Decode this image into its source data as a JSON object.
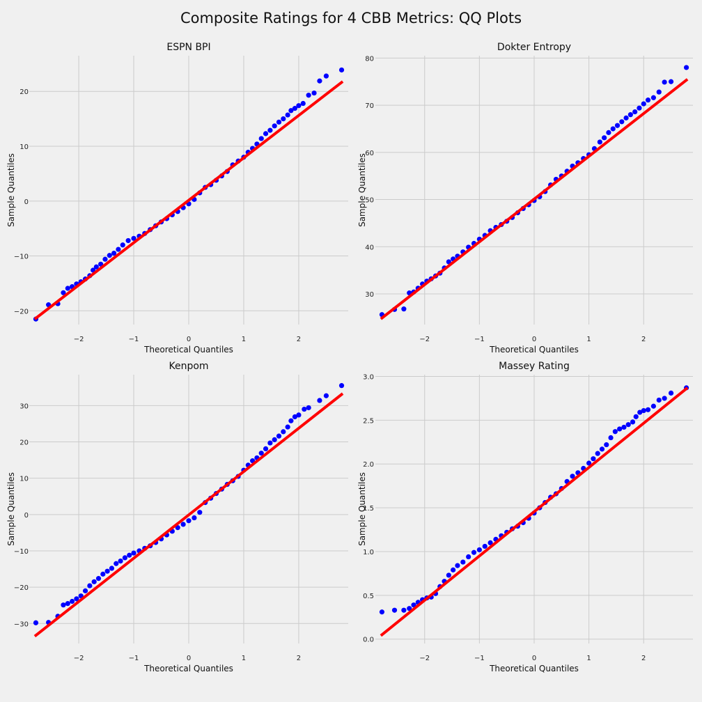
{
  "figure": {
    "title": "Composite Ratings for 4 CBB Metrics: QQ Plots"
  },
  "colors": {
    "background": "#f0f0f0",
    "grid": "#cbcbcb",
    "points": "#0000ff",
    "line": "#ff0000",
    "text": "#222222"
  },
  "chart_data": [
    {
      "type": "scatter",
      "title": "ESPN BPI",
      "xlabel": "Theoretical Quantiles",
      "ylabel": "Sample Quantiles",
      "xlim": [
        -2.9,
        2.9
      ],
      "ylim": [
        -22.5,
        26.5
      ],
      "xticks": [
        -2,
        -1,
        0,
        1,
        2
      ],
      "xtick_labels": [
        "−2",
        "−1",
        "0",
        "1",
        "2"
      ],
      "yticks": [
        -20,
        -10,
        0,
        10,
        20
      ],
      "ytick_labels": [
        "−20",
        "−10",
        "0",
        "10",
        "20"
      ],
      "grid": true,
      "reference_line": {
        "x": [
          -2.8,
          2.8
        ],
        "y": [
          -21.5,
          21.8
        ]
      },
      "points": [
        [
          -2.78,
          -21.5
        ],
        [
          -2.55,
          -18.9
        ],
        [
          -2.38,
          -18.7
        ],
        [
          -2.28,
          -16.7
        ],
        [
          -2.2,
          -15.9
        ],
        [
          -2.12,
          -15.6
        ],
        [
          -2.04,
          -15.1
        ],
        [
          -1.96,
          -14.7
        ],
        [
          -1.88,
          -14.2
        ],
        [
          -1.8,
          -13.6
        ],
        [
          -1.74,
          -12.6
        ],
        [
          -1.68,
          -12.0
        ],
        [
          -1.6,
          -11.5
        ],
        [
          -1.52,
          -10.6
        ],
        [
          -1.44,
          -9.9
        ],
        [
          -1.36,
          -9.5
        ],
        [
          -1.28,
          -8.8
        ],
        [
          -1.2,
          -8.0
        ],
        [
          -1.1,
          -7.2
        ],
        [
          -1.0,
          -6.8
        ],
        [
          -0.9,
          -6.4
        ],
        [
          -0.8,
          -5.9
        ],
        [
          -0.7,
          -5.2
        ],
        [
          -0.6,
          -4.5
        ],
        [
          -0.5,
          -3.8
        ],
        [
          -0.4,
          -3.2
        ],
        [
          -0.3,
          -2.5
        ],
        [
          -0.2,
          -1.9
        ],
        [
          -0.1,
          -1.2
        ],
        [
          0.0,
          -0.5
        ],
        [
          0.1,
          0.3
        ],
        [
          0.2,
          1.5
        ],
        [
          0.3,
          2.5
        ],
        [
          0.4,
          3.0
        ],
        [
          0.5,
          3.8
        ],
        [
          0.6,
          4.6
        ],
        [
          0.7,
          5.4
        ],
        [
          0.8,
          6.6
        ],
        [
          0.9,
          7.3
        ],
        [
          1.0,
          8.0
        ],
        [
          1.08,
          8.9
        ],
        [
          1.16,
          9.6
        ],
        [
          1.24,
          10.4
        ],
        [
          1.32,
          11.4
        ],
        [
          1.4,
          12.3
        ],
        [
          1.48,
          12.9
        ],
        [
          1.56,
          13.7
        ],
        [
          1.64,
          14.4
        ],
        [
          1.72,
          15.0
        ],
        [
          1.8,
          15.7
        ],
        [
          1.86,
          16.5
        ],
        [
          1.93,
          16.9
        ],
        [
          2.0,
          17.4
        ],
        [
          2.08,
          17.8
        ],
        [
          2.18,
          19.3
        ],
        [
          2.28,
          19.7
        ],
        [
          2.38,
          21.9
        ],
        [
          2.5,
          22.8
        ],
        [
          2.78,
          23.9
        ]
      ]
    },
    {
      "type": "scatter",
      "title": "Dokter Entropy",
      "xlabel": "Theoretical Quantiles",
      "ylabel": "Sample Quantiles",
      "xlim": [
        -2.9,
        2.9
      ],
      "ylim": [
        23.5,
        80.5
      ],
      "xticks": [
        -2,
        -1,
        0,
        1,
        2
      ],
      "xtick_labels": [
        "−2",
        "−1",
        "0",
        "1",
        "2"
      ],
      "yticks": [
        30,
        40,
        50,
        60,
        70,
        80
      ],
      "ytick_labels": [
        "30",
        "40",
        "50",
        "60",
        "70",
        "80"
      ],
      "grid": true,
      "reference_line": {
        "x": [
          -2.8,
          2.8
        ],
        "y": [
          24.7,
          75.5
        ]
      },
      "points": [
        [
          -2.78,
          25.6
        ],
        [
          -2.55,
          26.7
        ],
        [
          -2.38,
          26.8
        ],
        [
          -2.28,
          30.2
        ],
        [
          -2.2,
          30.4
        ],
        [
          -2.12,
          31.2
        ],
        [
          -2.04,
          32.1
        ],
        [
          -1.96,
          32.7
        ],
        [
          -1.88,
          33.2
        ],
        [
          -1.8,
          33.8
        ],
        [
          -1.72,
          34.4
        ],
        [
          -1.64,
          35.5
        ],
        [
          -1.56,
          36.8
        ],
        [
          -1.48,
          37.4
        ],
        [
          -1.4,
          38.0
        ],
        [
          -1.3,
          38.9
        ],
        [
          -1.2,
          39.9
        ],
        [
          -1.1,
          40.7
        ],
        [
          -1.0,
          41.6
        ],
        [
          -0.9,
          42.4
        ],
        [
          -0.8,
          43.4
        ],
        [
          -0.7,
          44.1
        ],
        [
          -0.6,
          44.7
        ],
        [
          -0.5,
          45.4
        ],
        [
          -0.4,
          46.2
        ],
        [
          -0.3,
          47.2
        ],
        [
          -0.2,
          48.1
        ],
        [
          -0.1,
          48.9
        ],
        [
          0.0,
          49.8
        ],
        [
          0.1,
          50.6
        ],
        [
          0.2,
          51.7
        ],
        [
          0.3,
          53.1
        ],
        [
          0.4,
          54.3
        ],
        [
          0.5,
          55.0
        ],
        [
          0.6,
          56.0
        ],
        [
          0.7,
          57.1
        ],
        [
          0.8,
          57.8
        ],
        [
          0.9,
          58.7
        ],
        [
          1.0,
          59.5
        ],
        [
          1.1,
          60.8
        ],
        [
          1.2,
          62.2
        ],
        [
          1.28,
          63.1
        ],
        [
          1.36,
          64.2
        ],
        [
          1.44,
          65.0
        ],
        [
          1.52,
          65.7
        ],
        [
          1.6,
          66.5
        ],
        [
          1.68,
          67.3
        ],
        [
          1.76,
          68.0
        ],
        [
          1.84,
          68.6
        ],
        [
          1.92,
          69.4
        ],
        [
          2.0,
          70.3
        ],
        [
          2.08,
          71.1
        ],
        [
          2.18,
          71.6
        ],
        [
          2.28,
          72.8
        ],
        [
          2.38,
          74.9
        ],
        [
          2.5,
          75.0
        ],
        [
          2.78,
          78.0
        ]
      ]
    },
    {
      "type": "scatter",
      "title": "Kenpom",
      "xlabel": "Theoretical Quantiles",
      "ylabel": "Sample Quantiles",
      "xlim": [
        -2.9,
        2.9
      ],
      "ylim": [
        -35.5,
        38.5
      ],
      "xticks": [
        -2,
        -1,
        0,
        1,
        2
      ],
      "xtick_labels": [
        "−2",
        "−1",
        "0",
        "1",
        "2"
      ],
      "yticks": [
        -30,
        -20,
        -10,
        0,
        10,
        20,
        30
      ],
      "ytick_labels": [
        "−30",
        "−20",
        "−10",
        "0",
        "10",
        "20",
        "30"
      ],
      "grid": true,
      "reference_line": {
        "x": [
          -2.8,
          2.8
        ],
        "y": [
          -33.5,
          33.3
        ]
      },
      "points": [
        [
          -2.78,
          -29.8
        ],
        [
          -2.55,
          -29.7
        ],
        [
          -2.38,
          -28.0
        ],
        [
          -2.28,
          -24.9
        ],
        [
          -2.2,
          -24.5
        ],
        [
          -2.12,
          -23.9
        ],
        [
          -2.04,
          -23.2
        ],
        [
          -1.96,
          -22.4
        ],
        [
          -1.88,
          -21.0
        ],
        [
          -1.8,
          -19.6
        ],
        [
          -1.72,
          -18.5
        ],
        [
          -1.64,
          -17.6
        ],
        [
          -1.56,
          -16.4
        ],
        [
          -1.48,
          -15.6
        ],
        [
          -1.4,
          -14.8
        ],
        [
          -1.32,
          -13.5
        ],
        [
          -1.24,
          -12.8
        ],
        [
          -1.16,
          -11.9
        ],
        [
          -1.08,
          -11.2
        ],
        [
          -1.0,
          -10.6
        ],
        [
          -0.9,
          -10.0
        ],
        [
          -0.8,
          -9.3
        ],
        [
          -0.7,
          -8.6
        ],
        [
          -0.6,
          -7.7
        ],
        [
          -0.5,
          -6.7
        ],
        [
          -0.4,
          -5.6
        ],
        [
          -0.3,
          -4.6
        ],
        [
          -0.2,
          -3.6
        ],
        [
          -0.1,
          -2.7
        ],
        [
          0.0,
          -1.7
        ],
        [
          0.1,
          -0.9
        ],
        [
          0.2,
          0.6
        ],
        [
          0.3,
          3.3
        ],
        [
          0.4,
          4.5
        ],
        [
          0.5,
          5.8
        ],
        [
          0.6,
          7.0
        ],
        [
          0.7,
          8.3
        ],
        [
          0.8,
          9.3
        ],
        [
          0.9,
          10.5
        ],
        [
          1.0,
          12.2
        ],
        [
          1.08,
          13.6
        ],
        [
          1.16,
          14.8
        ],
        [
          1.24,
          15.6
        ],
        [
          1.32,
          16.9
        ],
        [
          1.4,
          18.1
        ],
        [
          1.48,
          19.7
        ],
        [
          1.56,
          20.6
        ],
        [
          1.64,
          21.6
        ],
        [
          1.72,
          22.8
        ],
        [
          1.8,
          24.1
        ],
        [
          1.86,
          25.8
        ],
        [
          1.93,
          26.9
        ],
        [
          2.0,
          27.4
        ],
        [
          2.1,
          29.0
        ],
        [
          2.18,
          29.4
        ],
        [
          2.38,
          31.4
        ],
        [
          2.5,
          32.7
        ],
        [
          2.78,
          35.5
        ]
      ]
    },
    {
      "type": "scatter",
      "title": "Massey Rating",
      "xlabel": "Theoretical Quantiles",
      "ylabel": "Sample Quantiles",
      "xlim": [
        -2.9,
        2.9
      ],
      "ylim": [
        -0.05,
        3.02
      ],
      "xticks": [
        -2,
        -1,
        0,
        1,
        2
      ],
      "xtick_labels": [
        "−2",
        "−1",
        "0",
        "1",
        "2"
      ],
      "yticks": [
        0.0,
        0.5,
        1.0,
        1.5,
        2.0,
        2.5,
        3.0
      ],
      "ytick_labels": [
        "0.0",
        "0.5",
        "1.0",
        "1.5",
        "2.0",
        "2.5",
        "3.0"
      ],
      "grid": true,
      "reference_line": {
        "x": [
          -2.8,
          2.8
        ],
        "y": [
          0.04,
          2.87
        ]
      },
      "points": [
        [
          -2.78,
          0.31
        ],
        [
          -2.55,
          0.33
        ],
        [
          -2.38,
          0.33
        ],
        [
          -2.28,
          0.35
        ],
        [
          -2.2,
          0.39
        ],
        [
          -2.12,
          0.42
        ],
        [
          -2.04,
          0.45
        ],
        [
          -1.96,
          0.47
        ],
        [
          -1.88,
          0.48
        ],
        [
          -1.8,
          0.52
        ],
        [
          -1.72,
          0.6
        ],
        [
          -1.64,
          0.66
        ],
        [
          -1.56,
          0.73
        ],
        [
          -1.48,
          0.79
        ],
        [
          -1.4,
          0.84
        ],
        [
          -1.3,
          0.88
        ],
        [
          -1.2,
          0.94
        ],
        [
          -1.1,
          0.99
        ],
        [
          -1.0,
          1.02
        ],
        [
          -0.9,
          1.06
        ],
        [
          -0.8,
          1.1
        ],
        [
          -0.7,
          1.14
        ],
        [
          -0.6,
          1.18
        ],
        [
          -0.5,
          1.22
        ],
        [
          -0.4,
          1.26
        ],
        [
          -0.3,
          1.29
        ],
        [
          -0.2,
          1.33
        ],
        [
          -0.1,
          1.38
        ],
        [
          0.0,
          1.44
        ],
        [
          0.1,
          1.5
        ],
        [
          0.2,
          1.56
        ],
        [
          0.3,
          1.62
        ],
        [
          0.4,
          1.66
        ],
        [
          0.5,
          1.72
        ],
        [
          0.6,
          1.8
        ],
        [
          0.7,
          1.86
        ],
        [
          0.8,
          1.9
        ],
        [
          0.9,
          1.95
        ],
        [
          1.0,
          2.01
        ],
        [
          1.08,
          2.06
        ],
        [
          1.16,
          2.12
        ],
        [
          1.24,
          2.17
        ],
        [
          1.32,
          2.22
        ],
        [
          1.4,
          2.3
        ],
        [
          1.48,
          2.37
        ],
        [
          1.56,
          2.4
        ],
        [
          1.64,
          2.42
        ],
        [
          1.72,
          2.45
        ],
        [
          1.8,
          2.48
        ],
        [
          1.86,
          2.54
        ],
        [
          1.93,
          2.59
        ],
        [
          2.0,
          2.61
        ],
        [
          2.08,
          2.62
        ],
        [
          2.18,
          2.66
        ],
        [
          2.28,
          2.73
        ],
        [
          2.38,
          2.75
        ],
        [
          2.5,
          2.81
        ],
        [
          2.78,
          2.87
        ]
      ]
    }
  ]
}
